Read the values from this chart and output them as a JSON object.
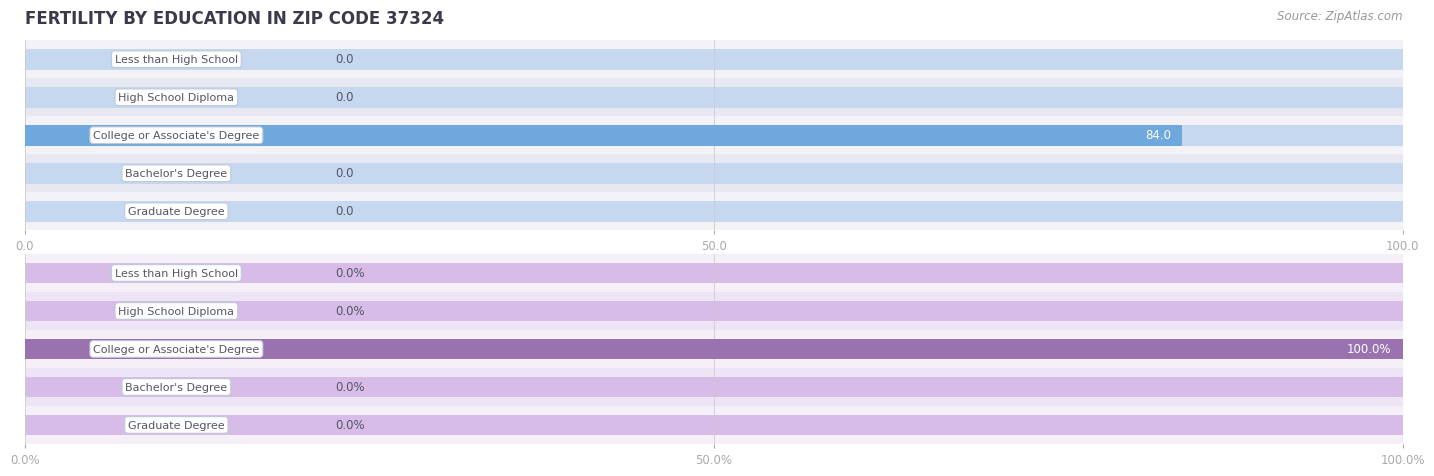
{
  "title": "FERTILITY BY EDUCATION IN ZIP CODE 37324",
  "source": "Source: ZipAtlas.com",
  "top_chart": {
    "categories": [
      "Less than High School",
      "High School Diploma",
      "College or Associate's Degree",
      "Bachelor's Degree",
      "Graduate Degree"
    ],
    "values": [
      0.0,
      0.0,
      84.0,
      0.0,
      0.0
    ],
    "bar_color_light": "#c5d8f0",
    "bar_color_dark": "#6fa8dc",
    "row_bg_odd": "#f2f2f7",
    "row_bg_even": "#e8e8f2",
    "xticks": [
      0.0,
      50.0,
      100.0
    ],
    "xtick_labels": [
      "0.0",
      "50.0",
      "100.0"
    ],
    "xmax": 100.0,
    "value_labels": [
      "0.0",
      "0.0",
      "84.0",
      "0.0",
      "0.0"
    ]
  },
  "bottom_chart": {
    "categories": [
      "Less than High School",
      "High School Diploma",
      "College or Associate's Degree",
      "Bachelor's Degree",
      "Graduate Degree"
    ],
    "values": [
      0.0,
      0.0,
      100.0,
      0.0,
      0.0
    ],
    "bar_color_light": "#d8bce8",
    "bar_color_dark": "#9b72b0",
    "row_bg_odd": "#f5f0f8",
    "row_bg_even": "#ede5f5",
    "xticks": [
      0.0,
      50.0,
      100.0
    ],
    "xtick_labels": [
      "0.0%",
      "50.0%",
      "100.0%"
    ],
    "xmax": 100.0,
    "value_labels": [
      "0.0%",
      "0.0%",
      "100.0%",
      "0.0%",
      "0.0%"
    ]
  },
  "label_box_facecolor": "#ffffff",
  "label_box_edgecolor": "#c0c8d8",
  "label_text_color": "#555566",
  "title_color": "#3a3a4a",
  "source_color": "#999999",
  "bar_height": 0.55,
  "label_fontsize": 8.0,
  "value_fontsize": 8.5,
  "title_fontsize": 12,
  "source_fontsize": 8.5,
  "gridline_color": "#cccccc"
}
